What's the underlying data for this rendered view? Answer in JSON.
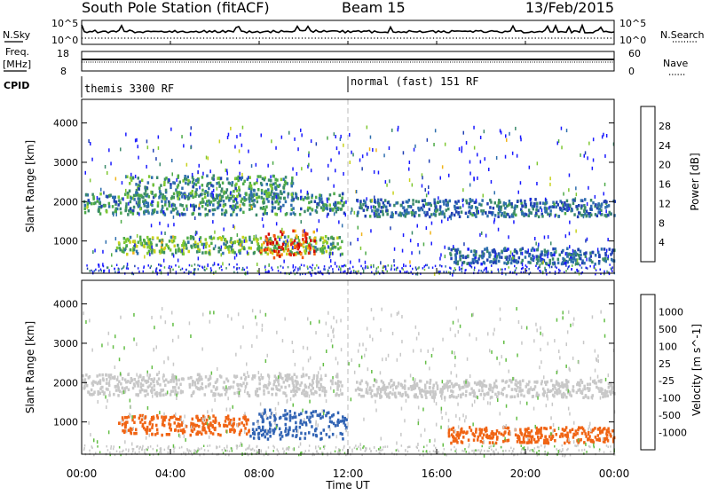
{
  "header": {
    "station": "South Pole Station (fitACF)",
    "beam": "Beam 15",
    "date": "13/Feb/2015"
  },
  "top_panels": {
    "nsky_label": "N.Sky",
    "nsearch_label": "N.Search",
    "nsky_tick_top": "10^5",
    "nsky_tick_bottom": "10^0",
    "freq_label_1": "Freq.",
    "freq_label_2": "[MHz]",
    "freq_ticks": [
      "18",
      "8"
    ],
    "nave_label": "Nave",
    "nave_ticks": [
      "60",
      "0"
    ],
    "cpid_label": "CPID",
    "cpid_modes": [
      "themis 3300 RF",
      "normal (fast) 151 RF"
    ],
    "cpid_switch_hour": 12
  },
  "chart_data": [
    {
      "type": "heatmap",
      "title": "",
      "ylabel": "Slant Range [km]",
      "xlabel": "",
      "x_range_hours": [
        0,
        24
      ],
      "ylim": [
        180,
        4600
      ],
      "yticks": [
        1000,
        2000,
        3000,
        4000
      ],
      "colorbar": {
        "label": "Power [dB]",
        "ticks": [
          "28",
          "24",
          "20",
          "16",
          "12",
          "8",
          "4"
        ],
        "range": [
          0,
          32
        ],
        "colors": [
          "#1a1aff",
          "#2140b4",
          "#2f6fae",
          "#3b8a6a",
          "#4daa48",
          "#7fc832",
          "#c8d21e",
          "#f0b419",
          "#f58c14",
          "#f05a0f",
          "#e62a0a",
          "#d20000"
        ]
      },
      "echo_regions": [
        {
          "name": "band-2000km",
          "t0": 0.0,
          "t1": 11.8,
          "r0": 1700,
          "r1": 2250,
          "value": 9
        },
        {
          "name": "band-2000km-late",
          "t0": 12.3,
          "t1": 24.0,
          "r0": 1650,
          "r1": 2100,
          "value": 7
        },
        {
          "name": "band-1000km",
          "t0": 1.5,
          "t1": 11.7,
          "r0": 700,
          "r1": 1150,
          "value": 13
        },
        {
          "name": "strong-patch",
          "t0": 8.0,
          "t1": 10.5,
          "r0": 600,
          "r1": 1300,
          "value": 27
        },
        {
          "name": "low-range-late",
          "t0": 16.5,
          "t1": 24.0,
          "r0": 450,
          "r1": 850,
          "value": 6
        },
        {
          "name": "mid-band-2-3",
          "t0": 2.0,
          "t1": 9.5,
          "r0": 2100,
          "r1": 2700,
          "value": 10
        }
      ]
    },
    {
      "type": "heatmap",
      "title": "",
      "ylabel": "Slant Range [km]",
      "xlabel": "Time UT",
      "x_range_hours": [
        0,
        24
      ],
      "xtick_labels": [
        "00:00",
        "04:00",
        "08:00",
        "12:00",
        "16:00",
        "20:00",
        "00:00"
      ],
      "ylim": [
        180,
        4600
      ],
      "yticks": [
        1000,
        2000,
        3000,
        4000
      ],
      "colorbar": {
        "label": "Velocity [m s^-1]",
        "ticks": [
          "1000",
          "500",
          "100",
          "25",
          "-25",
          "-100",
          "-500",
          "-1000"
        ],
        "colors": [
          "#1e3caa",
          "#3264b4",
          "#3c8c6e",
          "#64be46",
          "#c8c8c8",
          "#c8c8c8",
          "#f0961e",
          "#f06414",
          "#e62814",
          "#d20a0a"
        ]
      },
      "echo_regions": [
        {
          "name": "ground-scatter-2000",
          "t0": 0.0,
          "t1": 11.8,
          "r0": 1700,
          "r1": 2250,
          "value": 0
        },
        {
          "name": "ground-scatter-late",
          "t0": 12.3,
          "t1": 24.0,
          "r0": 1650,
          "r1": 2100,
          "value": 0
        },
        {
          "name": "negative-vel-1000",
          "t0": 1.5,
          "t1": 7.5,
          "r0": 700,
          "r1": 1200,
          "value": -250
        },
        {
          "name": "positive-vel-1000",
          "t0": 7.5,
          "t1": 12.0,
          "r0": 600,
          "r1": 1350,
          "value": 300
        },
        {
          "name": "negative-vel-late",
          "t0": 16.5,
          "t1": 24.0,
          "r0": 500,
          "r1": 900,
          "value": -300
        }
      ]
    }
  ]
}
